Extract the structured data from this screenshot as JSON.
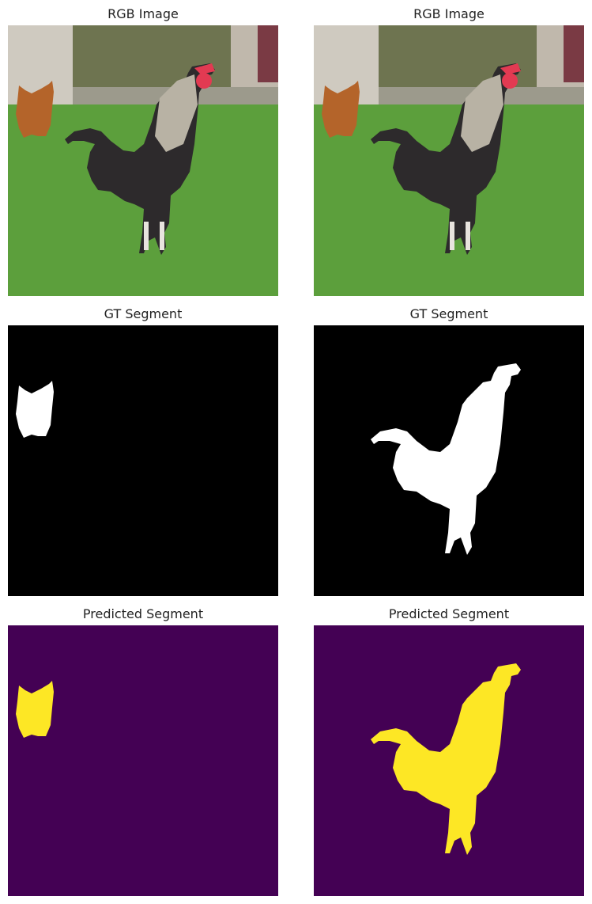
{
  "panels": [
    {
      "title": "RGB Image"
    },
    {
      "title": "RGB Image"
    },
    {
      "title": "GT Segment"
    },
    {
      "title": "GT Segment"
    },
    {
      "title": "Predicted Segment"
    },
    {
      "title": "Predicted Segment"
    }
  ],
  "colors": {
    "gt_background": "#000000",
    "gt_foreground": "#ffffff",
    "pred_background": "#440154",
    "pred_foreground": "#fde725",
    "grass": "#5a9e3a",
    "wall": "#cfcac0",
    "fence": "#6e7450",
    "rooster_body": "#2d2a2c",
    "hen": "#b4642a",
    "comb": "#e23a52"
  }
}
